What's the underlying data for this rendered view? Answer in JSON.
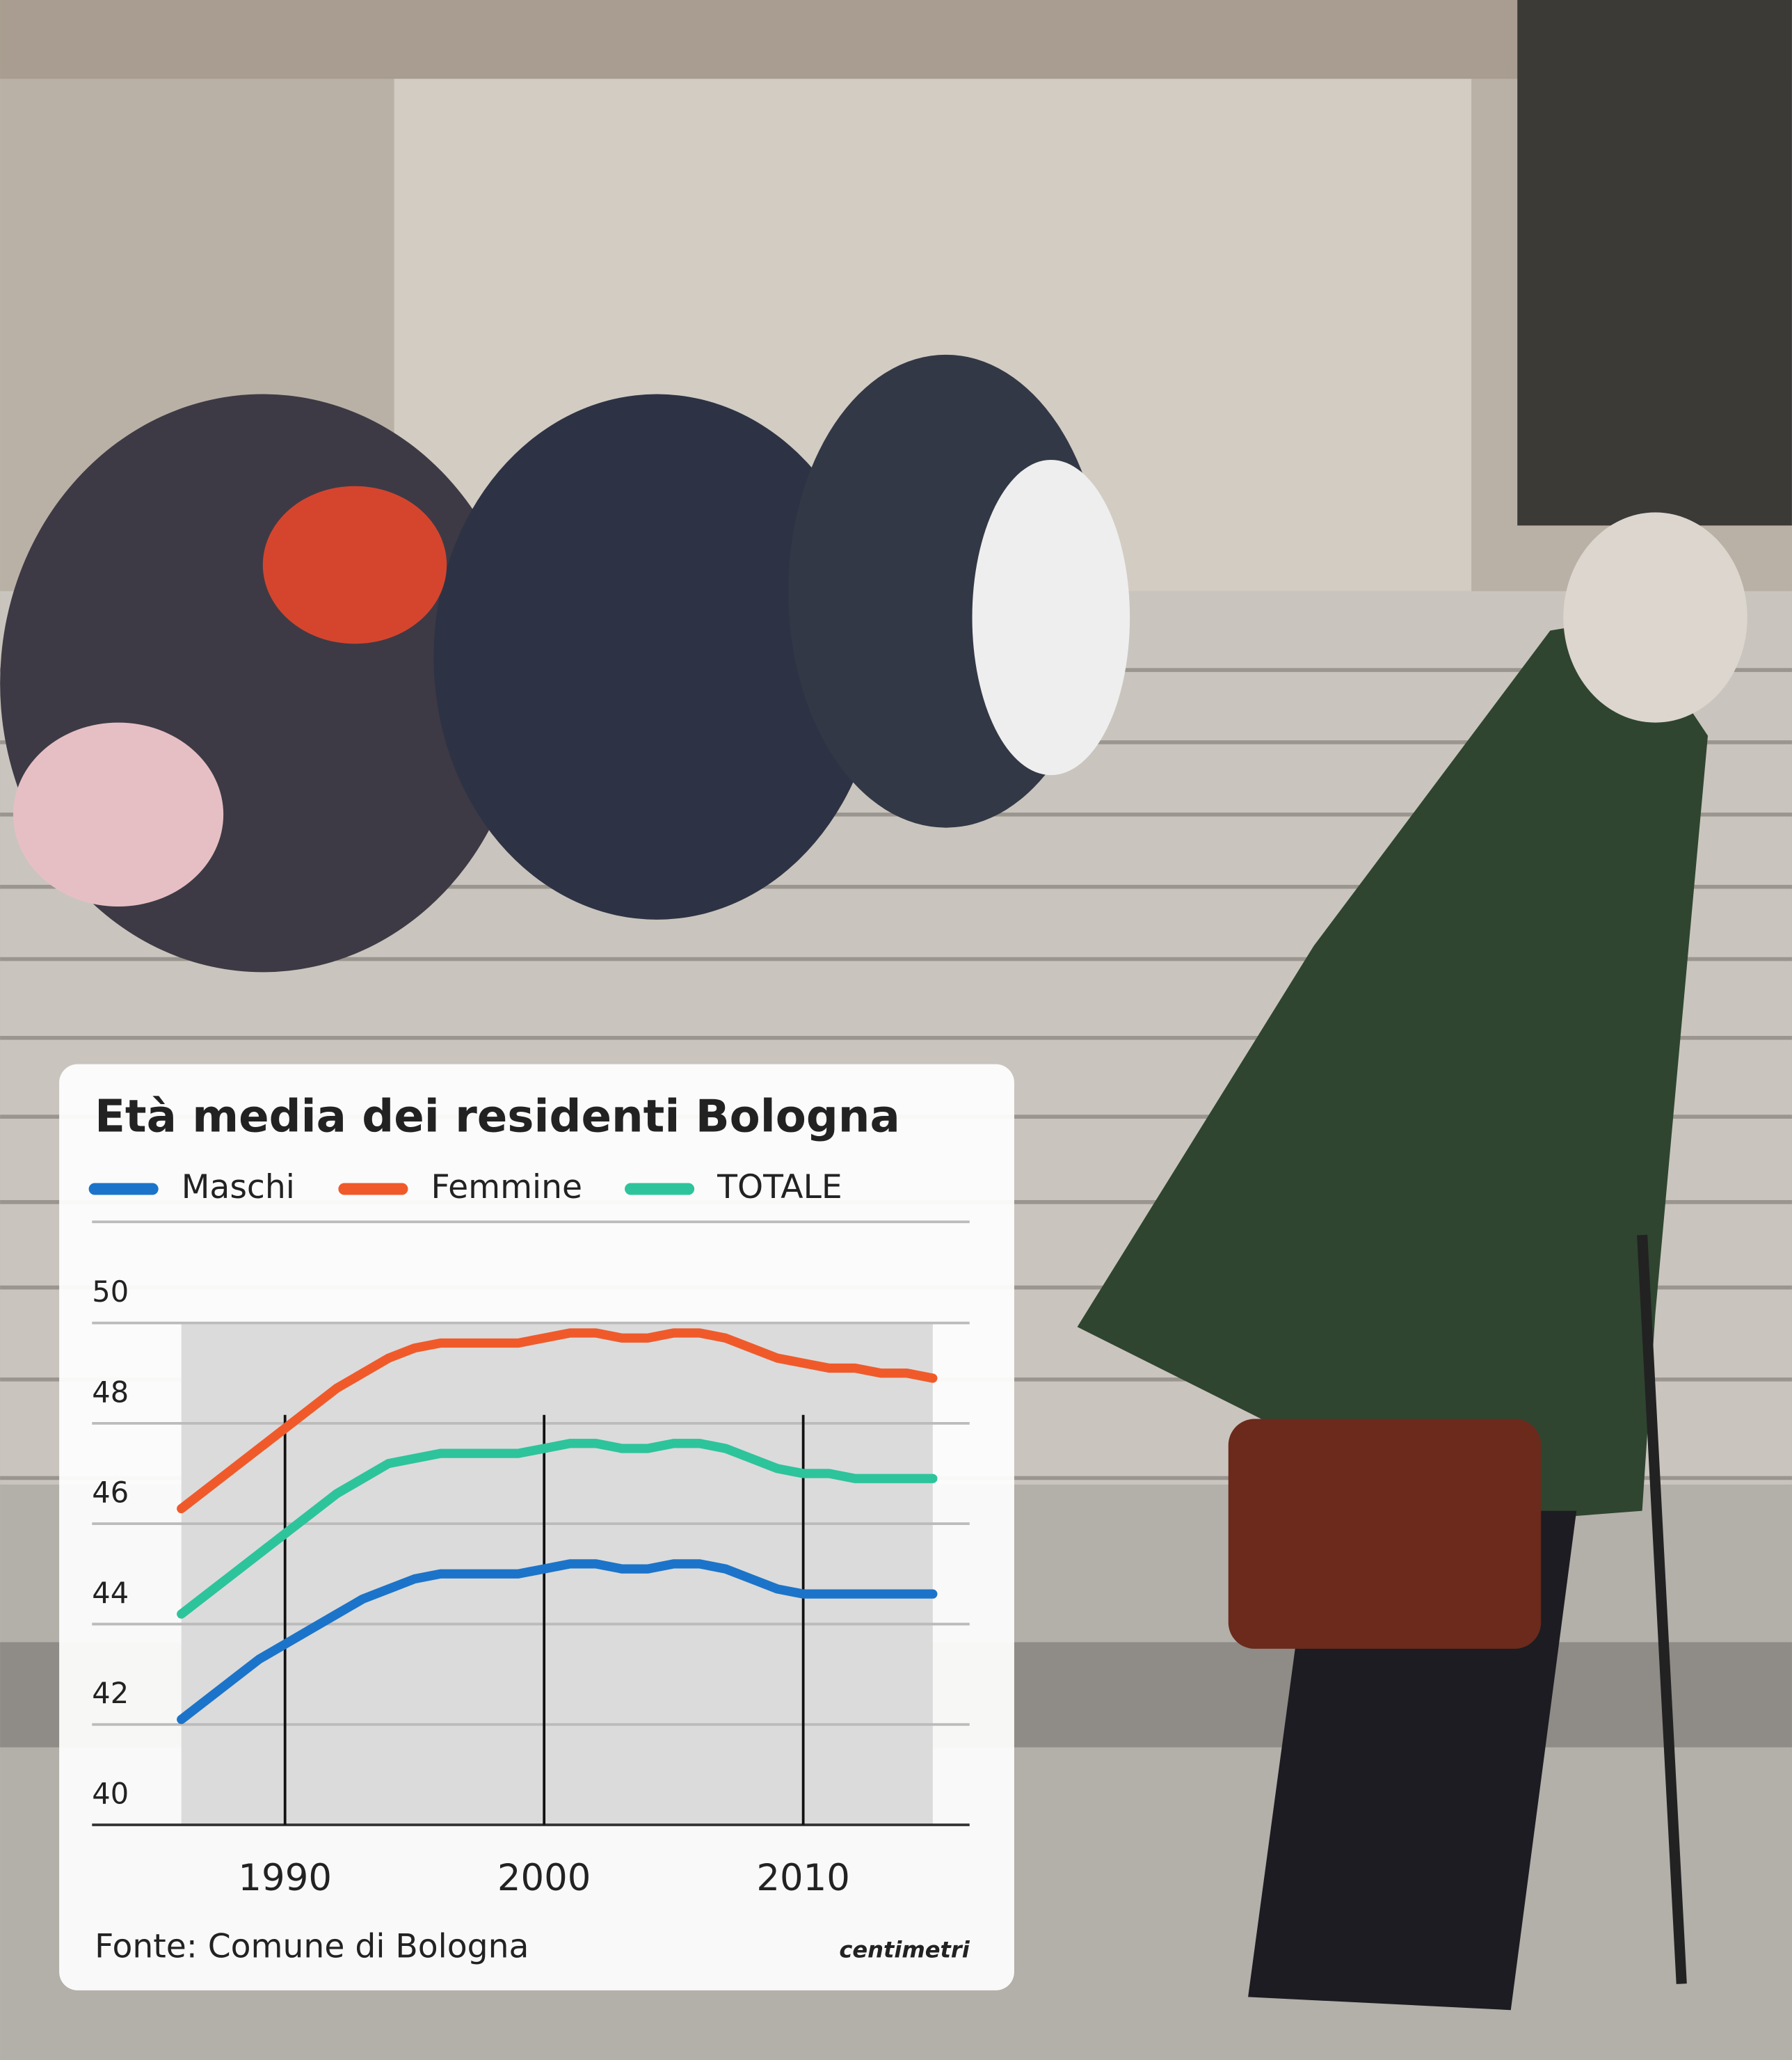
{
  "chart_data": {
    "type": "line",
    "title": "Età media dei residenti  Bologna",
    "source": "Fonte: Comune di Bologna",
    "credit": "centimetri",
    "x": [
      1986,
      1987,
      1988,
      1989,
      1990,
      1991,
      1992,
      1993,
      1994,
      1995,
      1996,
      1997,
      1998,
      1999,
      2000,
      2001,
      2002,
      2003,
      2004,
      2005,
      2006,
      2007,
      2008,
      2009,
      2010,
      2011,
      2012,
      2013,
      2014,
      2015
    ],
    "series": [
      {
        "name": "Maschi",
        "color": "#1b74c9",
        "values": [
          42.1,
          42.5,
          42.9,
          43.3,
          43.6,
          43.9,
          44.2,
          44.5,
          44.7,
          44.9,
          45.0,
          45.0,
          45.0,
          45.0,
          45.1,
          45.2,
          45.2,
          45.1,
          45.1,
          45.2,
          45.2,
          45.1,
          44.9,
          44.7,
          44.6,
          44.6,
          44.6,
          44.6,
          44.6,
          44.6
        ]
      },
      {
        "name": "Femmine",
        "color": "#f05a2a",
        "values": [
          46.3,
          46.7,
          47.1,
          47.5,
          47.9,
          48.3,
          48.7,
          49.0,
          49.3,
          49.5,
          49.6,
          49.6,
          49.6,
          49.6,
          49.7,
          49.8,
          49.8,
          49.7,
          49.7,
          49.8,
          49.8,
          49.7,
          49.5,
          49.3,
          49.2,
          49.1,
          49.1,
          49.0,
          49.0,
          48.9
        ]
      },
      {
        "name": "TOTALE",
        "color": "#2dc49b",
        "values": [
          44.2,
          44.6,
          45.0,
          45.4,
          45.8,
          46.2,
          46.6,
          46.9,
          47.2,
          47.3,
          47.4,
          47.4,
          47.4,
          47.4,
          47.5,
          47.6,
          47.6,
          47.5,
          47.5,
          47.6,
          47.6,
          47.5,
          47.3,
          47.1,
          47.0,
          47.0,
          46.9,
          46.9,
          46.9,
          46.9
        ]
      }
    ],
    "xlim": [
      1986,
      2015
    ],
    "xticks": [
      1990,
      2000,
      2010
    ],
    "ylim": [
      40,
      50
    ],
    "yticks": [
      40,
      42,
      44,
      46,
      48,
      50
    ],
    "grid": true
  }
}
